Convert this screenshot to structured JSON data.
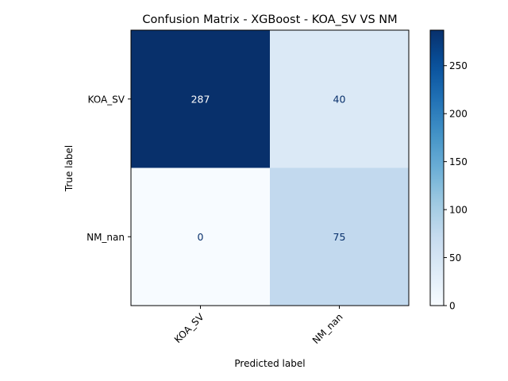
{
  "chart_data": {
    "type": "heatmap",
    "title": "Confusion Matrix - XGBoost - KOA_SV VS NM",
    "xlabel": "Predicted label",
    "ylabel": "True label",
    "x_categories": [
      "KOA_SV",
      "NM_nan"
    ],
    "y_categories": [
      "KOA_SV",
      "NM_nan"
    ],
    "matrix": [
      [
        287,
        40
      ],
      [
        0,
        75
      ]
    ],
    "colormap": "Blues",
    "colorbar": {
      "range": [
        0,
        287
      ],
      "ticks": [
        0,
        50,
        100,
        150,
        200,
        250
      ]
    },
    "colors": {
      "low": "#f7fbff",
      "high": "#08306b",
      "text_dark_cell": "#ffffff",
      "text_light_cell": "#08306b"
    }
  }
}
